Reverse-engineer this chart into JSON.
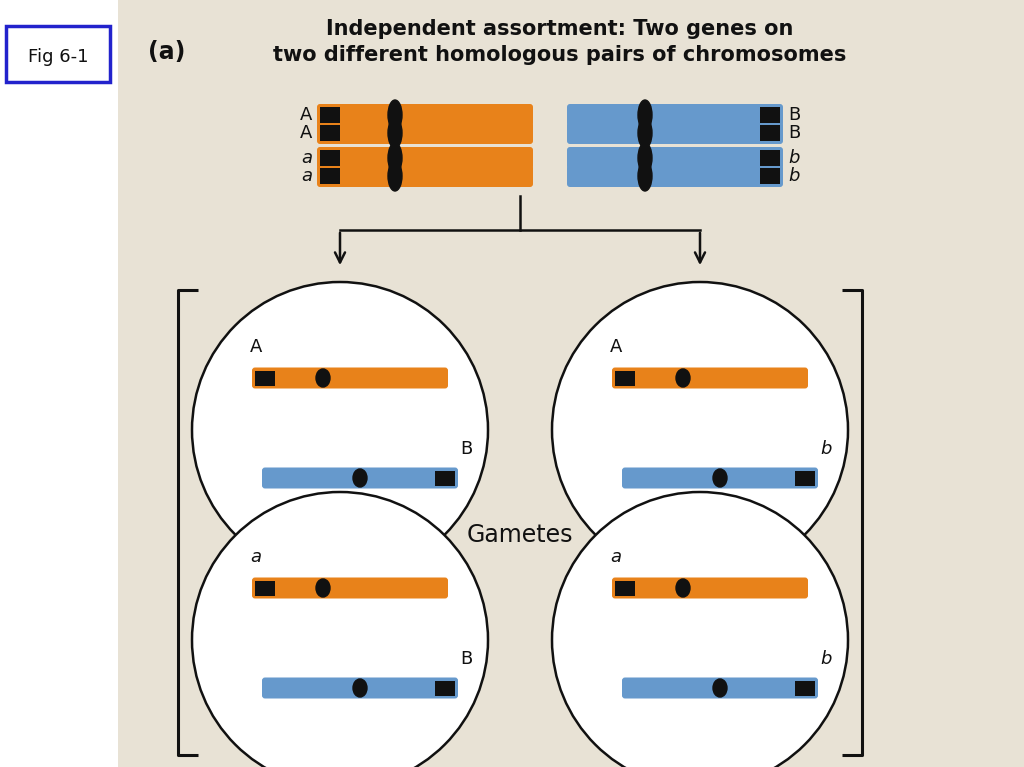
{
  "title_a": "(a)",
  "title_main": "Independent assortment: Two genes on\ntwo different homologous pairs of chromosomes",
  "fig_label": "Fig 6-1",
  "bg_color": "#e8e2d5",
  "orange_color": "#E8821A",
  "blue_color": "#6699CC",
  "black_color": "#111111",
  "white_color": "#ffffff",
  "gametes_label": "Gametes"
}
